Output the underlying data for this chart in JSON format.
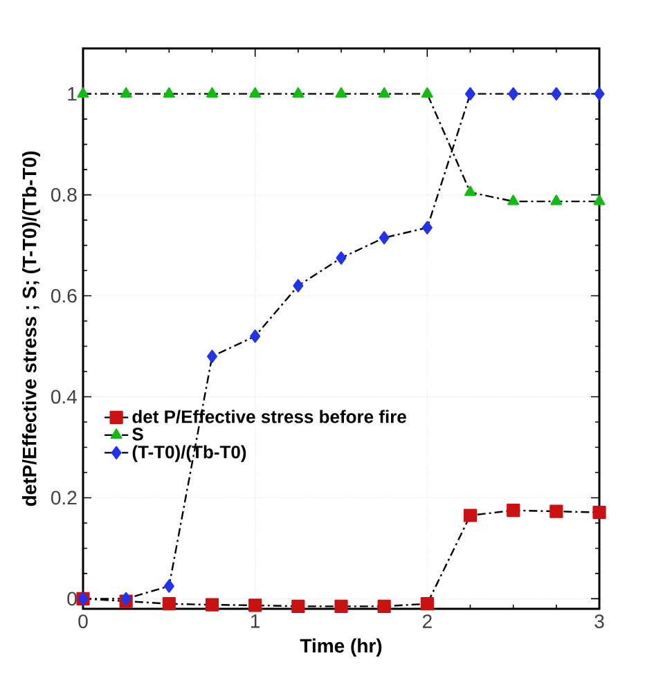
{
  "chart_data": {
    "type": "line",
    "xlabel": "Time (hr)",
    "ylabel": "detP/Effective stress ; S; (T-T0)/(Tb-T0)",
    "xlim": [
      0,
      3
    ],
    "ylim": [
      -0.02,
      1.09
    ],
    "xticks": [
      0,
      1,
      2,
      3
    ],
    "yticks": [
      0,
      0.2,
      0.4,
      0.6,
      0.8,
      1
    ],
    "grid": true,
    "legend": "left",
    "line_style": "dashdot",
    "x": [
      0,
      0.25,
      0.5,
      0.75,
      1,
      1.25,
      1.5,
      1.75,
      2,
      2.25,
      2.5,
      2.75,
      3
    ],
    "series": [
      {
        "name": "det P/Effective stress before fire",
        "color": "#cc1111",
        "marker": "square",
        "values": [
          0,
          -0.005,
          -0.01,
          -0.012,
          -0.013,
          -0.015,
          -0.015,
          -0.015,
          -0.01,
          0.165,
          0.175,
          0.173,
          0.171
        ]
      },
      {
        "name": "S",
        "color": "#11bb11",
        "marker": "triangle",
        "values": [
          1,
          1,
          1,
          1,
          1,
          1,
          1,
          1,
          1,
          0.805,
          0.787,
          0.787,
          0.787
        ]
      },
      {
        "name": "(T-T0)/(Tb-T0)",
        "color": "#2233ee",
        "marker": "diamond",
        "values": [
          0,
          0,
          0.025,
          0.48,
          0.52,
          0.62,
          0.675,
          0.715,
          0.735,
          1,
          1,
          1,
          1
        ]
      }
    ]
  }
}
